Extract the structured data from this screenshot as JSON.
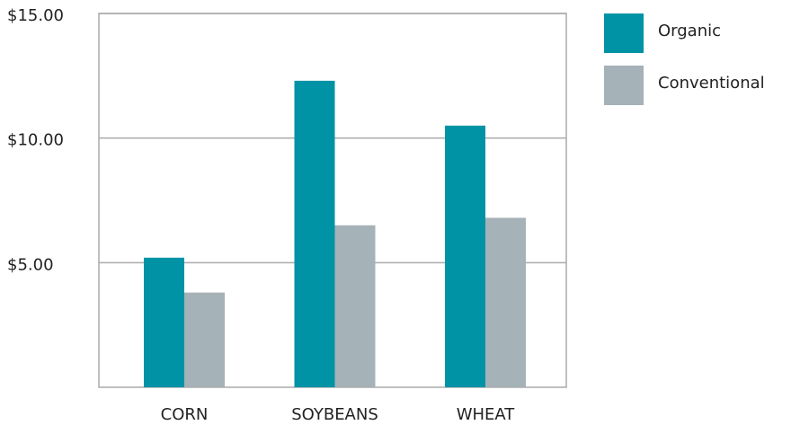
{
  "chart_data": {
    "type": "bar",
    "categories": [
      "CORN",
      "SOYBEANS",
      "WHEAT"
    ],
    "series": [
      {
        "name": "Organic",
        "color": "#0093a5",
        "values": [
          5.2,
          12.3,
          10.5
        ]
      },
      {
        "name": "Conventional",
        "color": "#a5b2b7",
        "values": [
          3.8,
          6.5,
          6.8
        ]
      }
    ],
    "ylim": [
      0,
      15
    ],
    "yticks": [
      {
        "value": 5,
        "label": "$5.00"
      },
      {
        "value": 10,
        "label": "$10.00"
      },
      {
        "value": 15,
        "label": "$15.00"
      }
    ],
    "grid": true,
    "legend": "right"
  }
}
